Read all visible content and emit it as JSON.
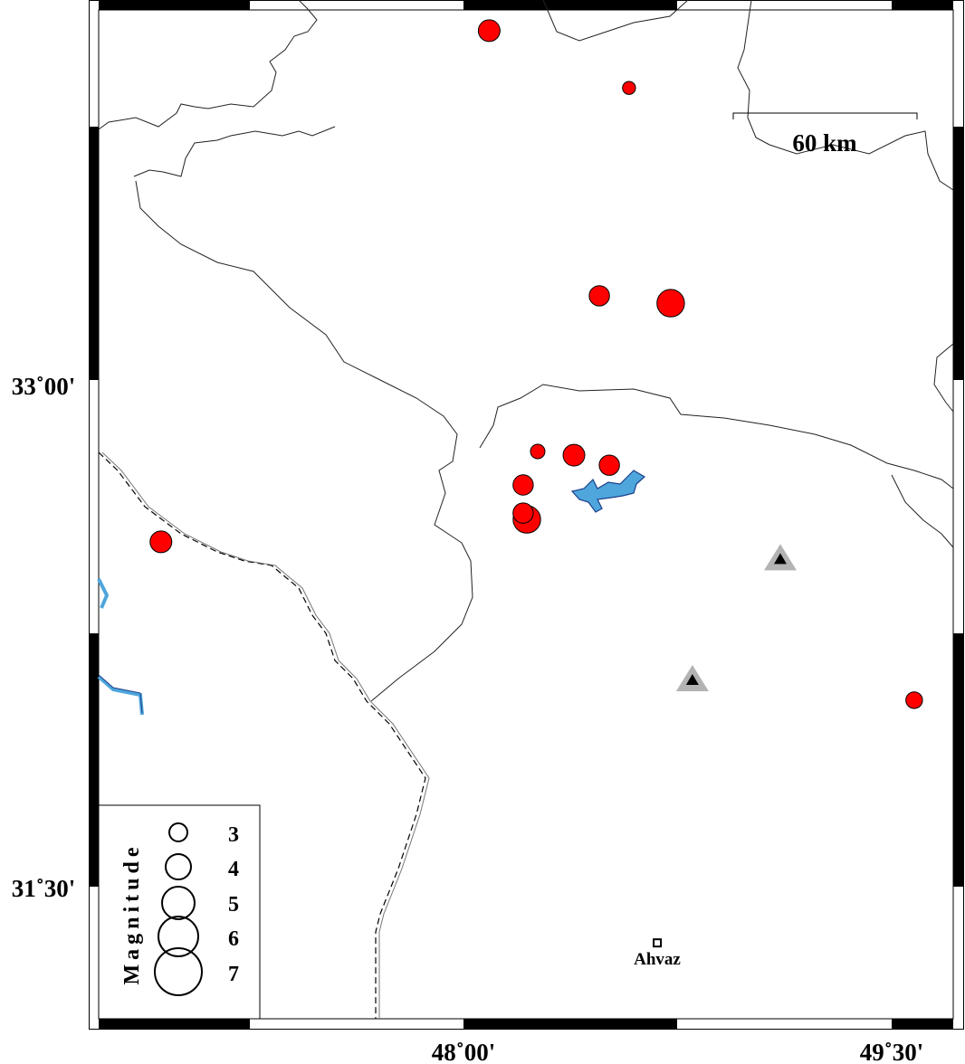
{
  "map": {
    "axes": {
      "lon_ticks": [
        {
          "value": 48.0,
          "label": "48˚00'"
        },
        {
          "value": 49.5,
          "label": "49˚30'"
        }
      ],
      "lat_ticks": [
        {
          "value": 33.0,
          "label": "33˚00'"
        },
        {
          "value": 31.5,
          "label": "31˚30'"
        }
      ]
    },
    "scale_bar": {
      "label": "60 km"
    },
    "colors": {
      "event_fill": "#ff0000",
      "water": "#4ea6dc",
      "station_outer": "#b3b3b3",
      "station_inner": "#000000"
    },
    "events": [
      {
        "lon": 48.09,
        "lat": 34.057,
        "mag": 3.5
      },
      {
        "lon": 48.58,
        "lat": 33.886,
        "mag": 2.3
      },
      {
        "lon": 48.476,
        "lat": 33.265,
        "mag": 3.3
      },
      {
        "lon": 48.726,
        "lat": 33.243,
        "mag": 4.3
      },
      {
        "lon": 48.26,
        "lat": 32.8,
        "mag": 2.5
      },
      {
        "lon": 48.387,
        "lat": 32.789,
        "mag": 3.5
      },
      {
        "lon": 48.511,
        "lat": 32.759,
        "mag": 3.3
      },
      {
        "lon": 48.209,
        "lat": 32.7,
        "mag": 3.3
      },
      {
        "lon": 48.222,
        "lat": 32.597,
        "mag": 4.3
      },
      {
        "lon": 48.209,
        "lat": 32.616,
        "mag": 3.3
      },
      {
        "lon": 46.94,
        "lat": 32.53,
        "mag": 3.5
      },
      {
        "lon": 49.579,
        "lat": 32.057,
        "mag": 2.8
      }
    ],
    "stations": [
      {
        "lon": 49.11,
        "lat": 32.48
      },
      {
        "lon": 48.802,
        "lat": 32.119
      }
    ],
    "cities": [
      {
        "name": "Ahvaz",
        "lon": 48.679,
        "lat": 31.332
      }
    ],
    "legend": {
      "title": "Magnitude",
      "entries": [
        "3",
        "4",
        "5",
        "6",
        "7"
      ]
    }
  }
}
